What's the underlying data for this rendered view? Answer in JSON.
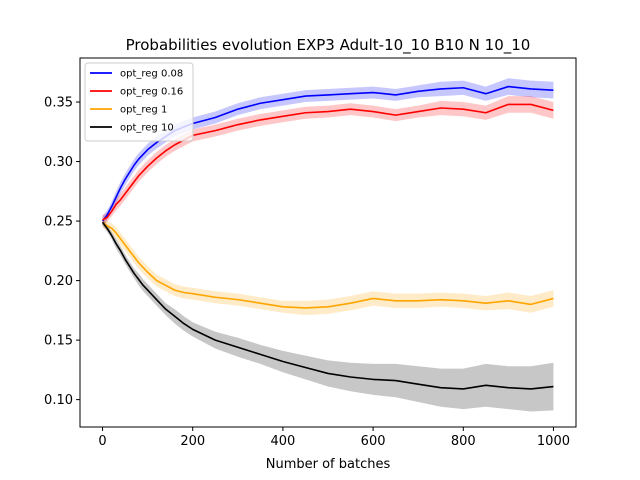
{
  "chart_data": {
    "type": "line",
    "title": "Probabilities evolution EXP3 Adult-10_10 B10 N 10_10",
    "xlabel": "Number of batches",
    "ylabel": "",
    "xlim": [
      -50,
      1050
    ],
    "ylim": [
      0.077,
      0.387
    ],
    "xticks": [
      0,
      200,
      400,
      600,
      800,
      1000
    ],
    "yticks": [
      0.1,
      0.15,
      0.2,
      0.25,
      0.3,
      0.35
    ],
    "xtick_labels": [
      "0",
      "200",
      "400",
      "600",
      "800",
      "1000"
    ],
    "ytick_labels": [
      "0.10",
      "0.15",
      "0.20",
      "0.25",
      "0.30",
      "0.35"
    ],
    "grid": false,
    "legend_position": "top-left",
    "x": [
      0,
      10,
      20,
      30,
      40,
      50,
      60,
      70,
      80,
      90,
      100,
      120,
      140,
      160,
      180,
      200,
      250,
      300,
      350,
      400,
      450,
      500,
      550,
      600,
      650,
      700,
      750,
      800,
      850,
      900,
      950,
      1000
    ],
    "series": [
      {
        "name": "opt_reg 0.08",
        "color": "#0000ff",
        "values": [
          0.25,
          0.255,
          0.262,
          0.27,
          0.278,
          0.285,
          0.291,
          0.297,
          0.302,
          0.306,
          0.31,
          0.316,
          0.321,
          0.326,
          0.329,
          0.332,
          0.337,
          0.344,
          0.349,
          0.352,
          0.355,
          0.356,
          0.357,
          0.358,
          0.356,
          0.359,
          0.361,
          0.362,
          0.357,
          0.363,
          0.361,
          0.36
        ],
        "band": [
          0.004,
          0.004,
          0.004,
          0.005,
          0.005,
          0.005,
          0.005,
          0.005,
          0.005,
          0.005,
          0.005,
          0.005,
          0.005,
          0.005,
          0.005,
          0.005,
          0.005,
          0.005,
          0.005,
          0.005,
          0.005,
          0.005,
          0.005,
          0.005,
          0.005,
          0.005,
          0.006,
          0.006,
          0.006,
          0.007,
          0.007,
          0.007
        ]
      },
      {
        "name": "opt_reg 0.16",
        "color": "#ff0000",
        "values": [
          0.251,
          0.253,
          0.258,
          0.264,
          0.268,
          0.273,
          0.278,
          0.283,
          0.288,
          0.292,
          0.296,
          0.303,
          0.309,
          0.314,
          0.318,
          0.322,
          0.326,
          0.331,
          0.335,
          0.338,
          0.341,
          0.342,
          0.344,
          0.342,
          0.339,
          0.342,
          0.345,
          0.344,
          0.341,
          0.348,
          0.348,
          0.343
        ],
        "band": [
          0.004,
          0.004,
          0.004,
          0.005,
          0.005,
          0.005,
          0.005,
          0.005,
          0.005,
          0.005,
          0.005,
          0.005,
          0.005,
          0.005,
          0.005,
          0.005,
          0.005,
          0.005,
          0.005,
          0.005,
          0.005,
          0.005,
          0.005,
          0.005,
          0.005,
          0.005,
          0.006,
          0.006,
          0.006,
          0.007,
          0.007,
          0.007
        ]
      },
      {
        "name": "opt_reg 1",
        "color": "#ffa500",
        "values": [
          0.249,
          0.246,
          0.244,
          0.24,
          0.235,
          0.23,
          0.225,
          0.22,
          0.215,
          0.211,
          0.207,
          0.2,
          0.196,
          0.192,
          0.19,
          0.189,
          0.186,
          0.184,
          0.181,
          0.178,
          0.177,
          0.178,
          0.181,
          0.185,
          0.183,
          0.183,
          0.184,
          0.183,
          0.181,
          0.183,
          0.18,
          0.185
        ],
        "band": [
          0.004,
          0.004,
          0.004,
          0.005,
          0.005,
          0.005,
          0.005,
          0.005,
          0.005,
          0.005,
          0.005,
          0.005,
          0.005,
          0.005,
          0.005,
          0.005,
          0.005,
          0.005,
          0.005,
          0.005,
          0.006,
          0.006,
          0.006,
          0.006,
          0.006,
          0.006,
          0.006,
          0.006,
          0.006,
          0.007,
          0.007,
          0.007
        ]
      },
      {
        "name": "opt_reg 10",
        "color": "#000000",
        "values": [
          0.249,
          0.244,
          0.238,
          0.231,
          0.225,
          0.218,
          0.212,
          0.206,
          0.201,
          0.196,
          0.192,
          0.184,
          0.176,
          0.17,
          0.164,
          0.159,
          0.15,
          0.144,
          0.138,
          0.132,
          0.127,
          0.122,
          0.119,
          0.117,
          0.116,
          0.113,
          0.11,
          0.109,
          0.112,
          0.11,
          0.109,
          0.111
        ],
        "band": [
          0.003,
          0.003,
          0.003,
          0.004,
          0.004,
          0.004,
          0.004,
          0.004,
          0.005,
          0.005,
          0.005,
          0.005,
          0.005,
          0.006,
          0.006,
          0.006,
          0.007,
          0.008,
          0.008,
          0.009,
          0.01,
          0.011,
          0.012,
          0.013,
          0.014,
          0.015,
          0.016,
          0.017,
          0.018,
          0.018,
          0.019,
          0.02
        ]
      }
    ]
  }
}
